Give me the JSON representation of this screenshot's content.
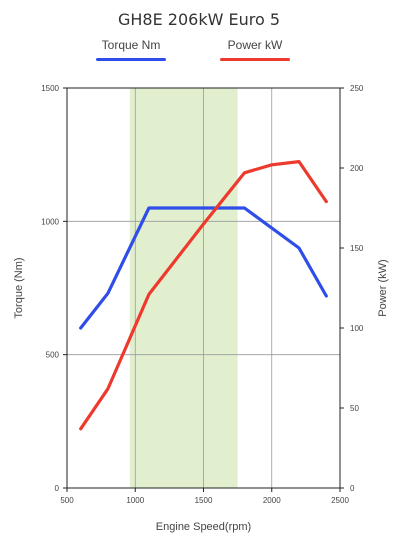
{
  "chart_data": {
    "type": "line",
    "title": "GH8E 206kW Euro 5",
    "xlabel": "Engine Speed(rpm)",
    "ylabel_left": "Torque (Nm)",
    "ylabel_right": "Power (kW)",
    "xlim": [
      500,
      2500
    ],
    "ylim_left": [
      0,
      1500
    ],
    "ylim_right": [
      0,
      250
    ],
    "x_ticks": [
      "500",
      "1000",
      "1500",
      "2000",
      "2500"
    ],
    "y_left_ticks": [
      "0",
      "500",
      "1000",
      "1500"
    ],
    "y_right_ticks": [
      "0",
      "50",
      "100",
      "150",
      "200",
      "250"
    ],
    "shaded_band": [
      960,
      1750
    ],
    "grid": true,
    "legend_position": "top",
    "series": [
      {
        "name": "Torque Nm",
        "axis": "left",
        "color": "#2f4de8",
        "x": [
          600,
          800,
          1100,
          1800,
          2200,
          2400
        ],
        "y": [
          600,
          730,
          1050,
          1050,
          900,
          720
        ]
      },
      {
        "name": "Power kW",
        "axis": "right",
        "color": "#ee3a2c",
        "x": [
          600,
          800,
          1100,
          1500,
          1800,
          2000,
          2200,
          2400
        ],
        "y": [
          37,
          62,
          121,
          165,
          197,
          202,
          204,
          179
        ]
      }
    ],
    "band_color": "#e2efcf"
  }
}
